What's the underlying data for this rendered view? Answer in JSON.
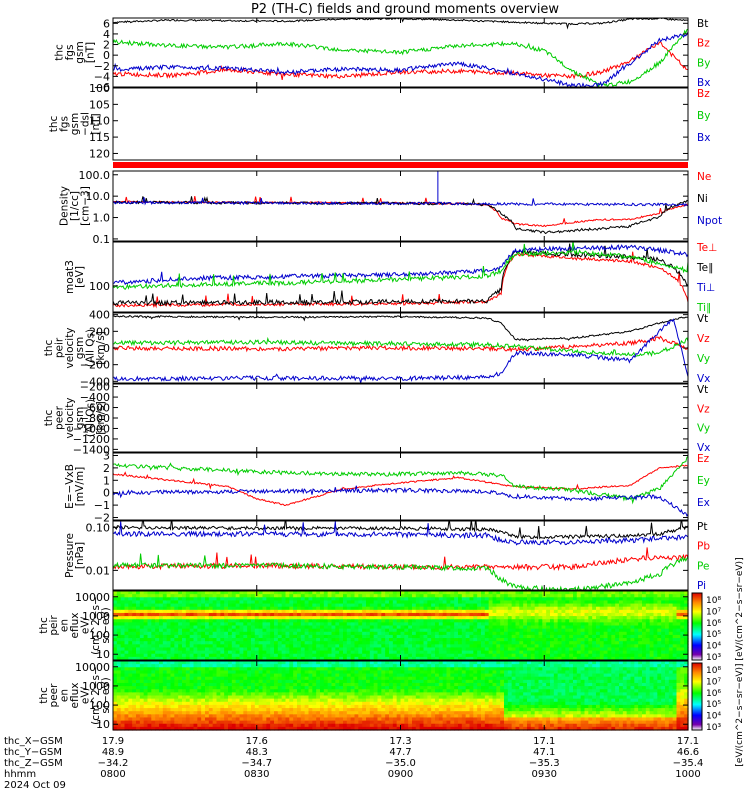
{
  "title": "P2 (TH-C) fields and ground moments overview",
  "chart_data": [
    {
      "type": "line",
      "ylabel": [
        "thc",
        "fgs",
        "gsm",
        "[nT]"
      ],
      "ylim": [
        -6,
        7
      ],
      "yticks": [
        "6",
        "4",
        "2",
        "0",
        "−2",
        "−4",
        "−6"
      ],
      "ytick_values": [
        6,
        4,
        2,
        0,
        -2,
        -4,
        -6
      ],
      "x_hours": [
        8.0,
        10.0
      ],
      "series": [
        {
          "name": "Bt",
          "color": "#000000",
          "x": [
            8.0,
            8.2,
            8.4,
            8.6,
            8.8,
            9.0,
            9.2,
            9.4,
            9.5,
            9.6,
            9.7,
            9.8,
            9.9,
            10.0
          ],
          "values": [
            6.2,
            6.6,
            6.5,
            6.4,
            6.8,
            6.9,
            6.6,
            6.2,
            6.0,
            5.9,
            6.0,
            6.8,
            6.9,
            6.5
          ]
        },
        {
          "name": "Bz",
          "color": "#ff0000",
          "x": [
            8.0,
            8.2,
            8.4,
            8.6,
            8.8,
            9.0,
            9.2,
            9.4,
            9.5,
            9.6,
            9.7,
            9.8,
            9.9,
            10.0
          ],
          "values": [
            -3.5,
            -3.8,
            -2.8,
            -3.6,
            -4.0,
            -3.2,
            -3.0,
            -3.4,
            -3.8,
            -4.0,
            -3.2,
            -1.0,
            2.5,
            -3.0
          ]
        },
        {
          "name": "By",
          "color": "#00cc00",
          "x": [
            8.0,
            8.2,
            8.4,
            8.6,
            8.8,
            9.0,
            9.2,
            9.4,
            9.5,
            9.6,
            9.7,
            9.8,
            9.9,
            10.0
          ],
          "values": [
            2.5,
            1.8,
            1.5,
            2.2,
            1.0,
            0.5,
            1.8,
            2.2,
            0.8,
            -3.0,
            -5.8,
            -5.0,
            -1.5,
            5.0
          ]
        },
        {
          "name": "Bx",
          "color": "#0000cc",
          "x": [
            8.0,
            8.2,
            8.4,
            8.6,
            8.8,
            9.0,
            9.2,
            9.4,
            9.5,
            9.6,
            9.7,
            9.8,
            9.9,
            10.0
          ],
          "values": [
            -2.8,
            -2.2,
            -2.5,
            -3.2,
            -2.6,
            -2.8,
            -1.5,
            -3.5,
            -4.5,
            -5.8,
            -5.5,
            -1.5,
            2.8,
            4.0
          ]
        }
      ],
      "legend": [
        "Bt",
        "Bz",
        "By",
        "Bx"
      ]
    },
    {
      "type": "line",
      "ylabel": [
        "thc",
        "fgs",
        "gsm",
        "−dsl",
        "[nT]"
      ],
      "ylim": [
        122,
        100
      ],
      "yticks": [
        "100",
        "105",
        "110",
        "115",
        "120"
      ],
      "ytick_values": [
        100,
        105,
        110,
        115,
        120
      ],
      "x_hours": [
        8.0,
        10.0
      ],
      "series": [],
      "legend": [
        "Bz",
        "By",
        "Bx"
      ],
      "bar_color": "#ff0000"
    },
    {
      "type": "line",
      "log": true,
      "ylabel": [
        "Density",
        "[1/cc]",
        "[cm−3]"
      ],
      "ylim": [
        0.08,
        150
      ],
      "yticks": [
        "100.0",
        "10.0",
        "1.0",
        "0.1"
      ],
      "ytick_values": [
        100,
        10,
        1,
        0.1
      ],
      "x_hours": [
        8.0,
        10.0
      ],
      "series": [
        {
          "name": "Ne",
          "color": "#ff0000",
          "x": [
            8.0,
            8.5,
            9.0,
            9.2,
            9.3,
            9.35,
            9.4,
            9.5,
            9.6,
            9.7,
            9.8,
            9.9,
            10.0
          ],
          "values": [
            5.5,
            5.0,
            4.8,
            4.5,
            4.0,
            0.9,
            0.5,
            0.4,
            0.6,
            0.8,
            0.8,
            1.5,
            4.0
          ]
        },
        {
          "name": "Ni",
          "color": "#000000",
          "x": [
            8.0,
            8.5,
            9.0,
            9.2,
            9.3,
            9.35,
            9.4,
            9.5,
            9.6,
            9.7,
            9.8,
            9.9,
            10.0
          ],
          "values": [
            5.2,
            4.8,
            4.6,
            4.4,
            4.0,
            1.5,
            0.3,
            0.2,
            0.25,
            0.3,
            0.4,
            1.0,
            6.0
          ]
        },
        {
          "name": "Npot",
          "color": "#0000cc",
          "x": [
            8.0,
            9.0,
            9.1,
            9.2,
            10.0
          ],
          "values": [
            5.0,
            4.6,
            4.6,
            4.4,
            4.0
          ]
        }
      ],
      "spike": {
        "x": 9.13,
        "value": 150,
        "color": "#0000cc"
      },
      "legend": [
        "Ne",
        "Ni",
        "Npot"
      ]
    },
    {
      "type": "line",
      "log": true,
      "ylabel": [
        "moat3",
        "[eV]"
      ],
      "ylim": [
        20,
        1500
      ],
      "yticks": [
        "100"
      ],
      "ytick_values": [
        100
      ],
      "x_hours": [
        8.0,
        10.0
      ],
      "series": [
        {
          "name": "Te⊥",
          "color": "#ff0000",
          "x": [
            8.0,
            8.5,
            9.0,
            9.3,
            9.35,
            9.4,
            9.6,
            9.8,
            9.9,
            10.0
          ],
          "values": [
            30,
            32,
            33,
            38,
            60,
            700,
            550,
            450,
            300,
            40
          ]
        },
        {
          "name": "Te∥",
          "color": "#000000",
          "x": [
            8.0,
            8.5,
            9.0,
            9.3,
            9.35,
            9.4,
            9.6,
            9.8,
            9.9,
            10.0
          ],
          "values": [
            35,
            36,
            38,
            40,
            80,
            800,
            700,
            600,
            500,
            100
          ]
        },
        {
          "name": "Ti⊥",
          "color": "#0000cc",
          "x": [
            8.0,
            8.3,
            8.6,
            9.0,
            9.3,
            9.35,
            9.4,
            9.6,
            9.8,
            9.9,
            10.0
          ],
          "values": [
            120,
            160,
            180,
            200,
            250,
            300,
            900,
            1000,
            1100,
            900,
            700
          ]
        },
        {
          "name": "Ti∥",
          "color": "#00cc00",
          "x": [
            8.0,
            8.3,
            8.6,
            9.0,
            9.3,
            9.35,
            9.4,
            9.6,
            9.8,
            9.9,
            10.0
          ],
          "values": [
            90,
            110,
            120,
            150,
            180,
            250,
            700,
            800,
            600,
            400,
            250
          ]
        }
      ],
      "legend": [
        "Te⊥",
        "Te∥",
        "Ti⊥",
        "Ti∥"
      ]
    },
    {
      "type": "line",
      "ylabel": [
        "thc",
        "peir",
        "velocity",
        "gsm",
        "(All Qs)",
        "[km/s]"
      ],
      "ylim": [
        -420,
        420
      ],
      "yticks": [
        "400",
        "200",
        "0",
        "−200",
        "−400"
      ],
      "ytick_values": [
        400,
        200,
        0,
        -200,
        -400
      ],
      "x_hours": [
        8.0,
        10.0
      ],
      "series": [
        {
          "name": "Vt",
          "color": "#000000",
          "x": [
            8.0,
            8.5,
            9.0,
            9.3,
            9.35,
            9.4,
            9.6,
            9.8,
            9.9,
            10.0
          ],
          "values": [
            380,
            370,
            375,
            360,
            300,
            100,
            120,
            200,
            300,
            380
          ]
        },
        {
          "name": "Vz",
          "color": "#ff0000",
          "x": [
            8.0,
            8.5,
            9.0,
            9.3,
            9.4,
            9.6,
            9.8,
            9.9,
            10.0
          ],
          "values": [
            0,
            -10,
            0,
            -5,
            -20,
            20,
            60,
            120,
            0
          ]
        },
        {
          "name": "Vy",
          "color": "#00cc00",
          "x": [
            8.0,
            8.5,
            9.0,
            9.3,
            9.4,
            9.6,
            9.8,
            9.9,
            10.0
          ],
          "values": [
            60,
            70,
            50,
            40,
            20,
            -40,
            -80,
            -60,
            100
          ]
        },
        {
          "name": "Vx",
          "color": "#0000cc",
          "x": [
            8.0,
            8.5,
            9.0,
            9.3,
            9.35,
            9.4,
            9.6,
            9.8,
            9.9,
            9.95,
            10.0
          ],
          "values": [
            -370,
            -360,
            -365,
            -350,
            -300,
            -60,
            -80,
            -150,
            200,
            350,
            -350
          ]
        }
      ],
      "legend": [
        "Vt",
        "Vz",
        "Vy",
        "Vx"
      ]
    },
    {
      "type": "line",
      "ylabel": [
        "thc",
        "peer",
        "velocity",
        "gsm",
        "(All Qs)",
        "[km/s]"
      ],
      "ylim": [
        -1450,
        -150
      ],
      "yticks": [
        "−200",
        "−400",
        "−600",
        "−800",
        "−1000",
        "−1200",
        "−1400"
      ],
      "ytick_values": [
        -200,
        -400,
        -600,
        -800,
        -1000,
        -1200,
        -1400
      ],
      "x_hours": [
        8.0,
        10.0
      ],
      "series": [],
      "legend": [
        "Vt",
        "Vz",
        "Vy",
        "Vx"
      ]
    },
    {
      "type": "line",
      "ylabel": [
        "E=−VxB",
        "[mV/m]"
      ],
      "ylim": [
        -2.2,
        3.2
      ],
      "yticks": [
        "3",
        "2",
        "1",
        "0",
        "−1",
        "−2"
      ],
      "ytick_values": [
        3,
        2,
        1,
        0,
        -1,
        -2
      ],
      "x_hours": [
        8.0,
        10.0
      ],
      "series": [
        {
          "name": "Ez",
          "color": "#ff0000",
          "x": [
            8.0,
            8.2,
            8.4,
            8.5,
            8.6,
            8.8,
            9.0,
            9.2,
            9.4,
            9.6,
            9.8,
            9.9,
            10.0
          ],
          "values": [
            1.5,
            1.0,
            0.5,
            -0.5,
            -1.0,
            0.3,
            0.8,
            1.2,
            0.5,
            0.3,
            0.6,
            2.0,
            2.2
          ]
        },
        {
          "name": "Ey",
          "color": "#00cc00",
          "x": [
            8.0,
            8.2,
            8.4,
            8.6,
            8.8,
            9.0,
            9.2,
            9.35,
            9.4,
            9.6,
            9.8,
            9.9,
            10.0
          ],
          "values": [
            2.2,
            2.0,
            1.8,
            1.6,
            1.5,
            1.5,
            1.6,
            1.4,
            0.5,
            0.2,
            -0.5,
            0.3,
            2.8
          ]
        },
        {
          "name": "Ex",
          "color": "#0000cc",
          "x": [
            8.0,
            8.5,
            9.0,
            9.3,
            9.4,
            9.6,
            9.8,
            9.9,
            10.0
          ],
          "values": [
            0,
            0.1,
            0.2,
            0.1,
            -0.3,
            -0.5,
            -0.4,
            -0.3,
            -1.8
          ]
        }
      ],
      "legend": [
        "Ez",
        "Ey",
        "Ex"
      ]
    },
    {
      "type": "line",
      "log": true,
      "ylabel": [
        "Pressure",
        "[nPa]"
      ],
      "ylim": [
        0.0035,
        0.14
      ],
      "yticks": [
        "0.10",
        "0.01"
      ],
      "ytick_values": [
        0.1,
        0.01
      ],
      "x_hours": [
        8.0,
        10.0
      ],
      "series": [
        {
          "name": "Pt",
          "color": "#000000",
          "x": [
            8.0,
            8.5,
            9.0,
            9.3,
            9.35,
            9.4,
            9.6,
            9.8,
            9.9,
            10.0
          ],
          "values": [
            0.1,
            0.095,
            0.095,
            0.09,
            0.08,
            0.06,
            0.06,
            0.065,
            0.07,
            0.1
          ]
        },
        {
          "name": "Pb",
          "color": "#ff0000",
          "x": [
            8.0,
            8.5,
            9.0,
            9.3,
            9.4,
            9.6,
            9.8,
            9.9,
            10.0
          ],
          "values": [
            0.012,
            0.013,
            0.012,
            0.012,
            0.012,
            0.012,
            0.018,
            0.02,
            0.02
          ]
        },
        {
          "name": "Pe",
          "color": "#00cc00",
          "x": [
            8.0,
            8.5,
            9.0,
            9.3,
            9.35,
            9.4,
            9.6,
            9.8,
            9.9,
            10.0
          ],
          "values": [
            0.013,
            0.013,
            0.012,
            0.011,
            0.006,
            0.004,
            0.0035,
            0.005,
            0.008,
            0.02
          ]
        },
        {
          "name": "Pi",
          "color": "#0000cc",
          "x": [
            8.0,
            8.5,
            9.0,
            9.3,
            9.35,
            9.4,
            9.6,
            9.8,
            9.9,
            10.0
          ],
          "values": [
            0.07,
            0.07,
            0.068,
            0.065,
            0.05,
            0.045,
            0.045,
            0.05,
            0.055,
            0.06
          ]
        }
      ],
      "legend": [
        "Pt",
        "Pb",
        "Pe",
        "Pi"
      ]
    },
    {
      "type": "heatmap",
      "ylabel": [
        "thc",
        "peir",
        "en",
        "eflux",
        "eV/",
        "(cm^2−s−",
        "sr−eV)"
      ],
      "ylim": [
        5,
        20000
      ],
      "yticks": [
        "10000",
        "1000",
        "100",
        "10"
      ],
      "ytick_values": [
        10000,
        1000,
        100,
        10
      ],
      "x_hours": [
        8.0,
        10.0
      ]
    },
    {
      "type": "heatmap",
      "ylabel": [
        "thc",
        "peer",
        "en",
        "eflux",
        "eV/",
        "(cm^2−s−",
        "sr−eV)"
      ],
      "ylim": [
        5,
        20000
      ],
      "yticks": [
        "10000",
        "1000",
        "100",
        "10"
      ],
      "ytick_values": [
        10000,
        1000,
        100,
        10
      ],
      "x_hours": [
        8.0,
        10.0
      ]
    }
  ],
  "colorbars": {
    "top_ticks": [
      "10⁸",
      "10⁷",
      "10⁶",
      "10⁵",
      "10⁴",
      "10³"
    ],
    "bottom_ticks": [
      "10⁸",
      "10⁷",
      "10⁶",
      "10⁵",
      "10⁴",
      "10³"
    ],
    "label": "[eV/(cm^2−s−sr−eV)]  [eV/(cm^2−s−sr−eV)]"
  },
  "x_axis": {
    "ticks_hours": [
      8.0,
      8.5,
      9.0,
      9.5,
      10.0
    ],
    "rows": [
      {
        "label": "thc_X−GSM",
        "values": [
          "17.9",
          "17.6",
          "17.3",
          "17.1",
          "17.1"
        ]
      },
      {
        "label": "thc_Y−GSM",
        "values": [
          "48.9",
          "48.3",
          "47.7",
          "47.1",
          "46.6"
        ]
      },
      {
        "label": "thc_Z−GSM",
        "values": [
          "−34.2",
          "−34.7",
          "−35.0",
          "−35.3",
          "−35.4"
        ]
      },
      {
        "label": "hhmm",
        "values": [
          "0800",
          "0830",
          "0900",
          "0930",
          "1000"
        ]
      }
    ],
    "date": "2024 Oct 09"
  }
}
